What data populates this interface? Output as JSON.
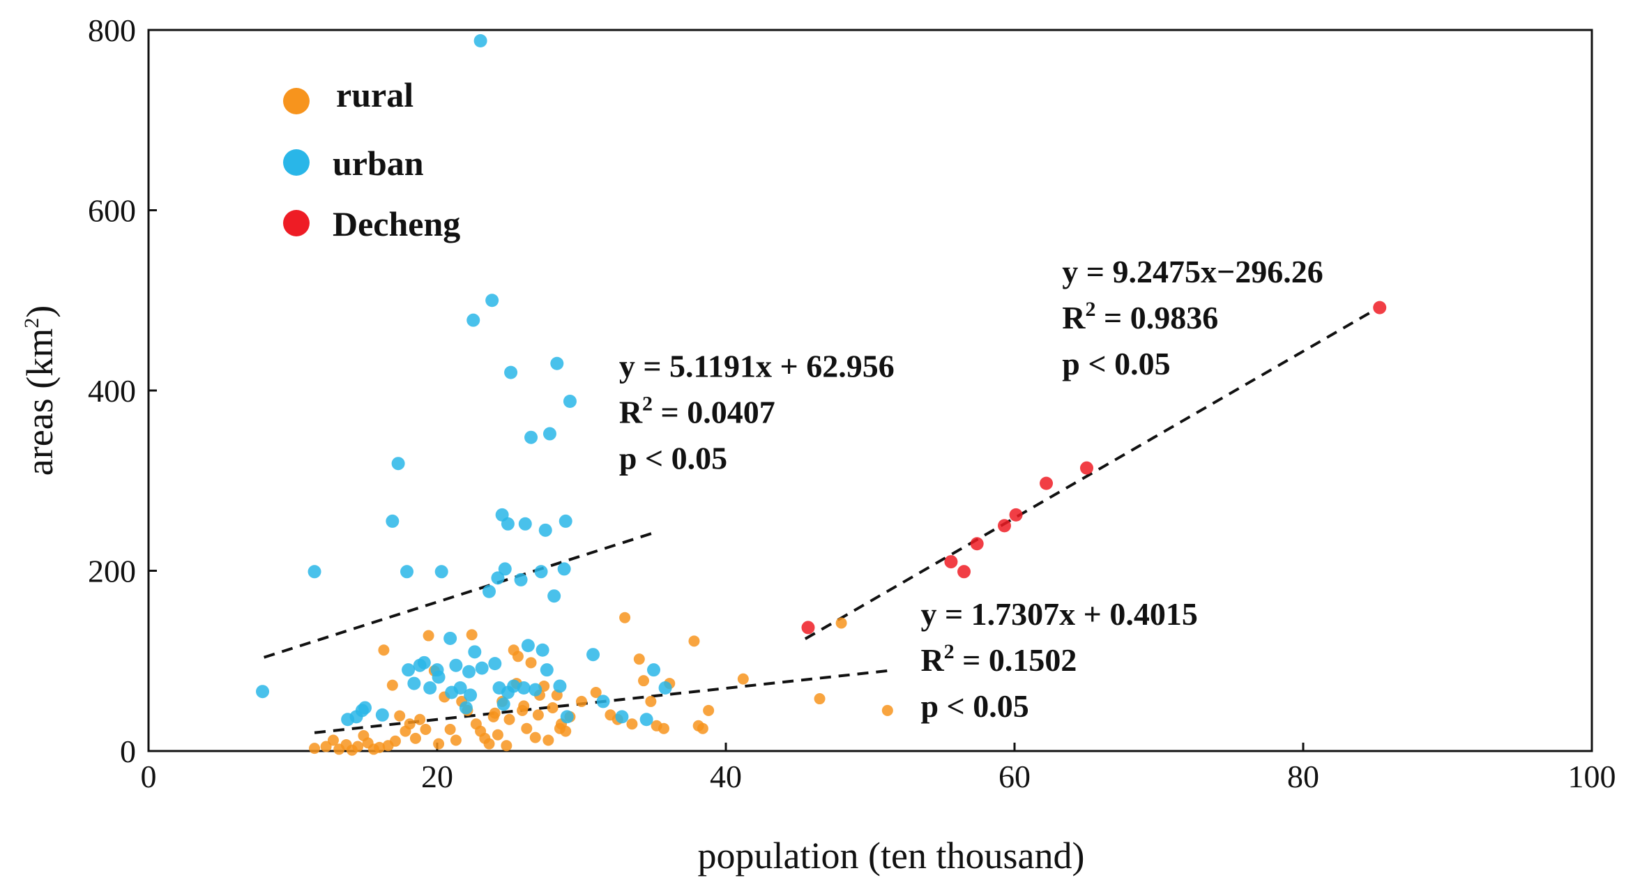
{
  "chart_data": {
    "type": "scatter",
    "xlabel": "population (ten thousand)",
    "ylabel_main": "areas (km",
    "ylabel_sup": "2",
    "ylabel_end": ")",
    "xlim": [
      0,
      100
    ],
    "ylim": [
      0,
      800
    ],
    "xticks": [
      "0",
      "20",
      "40",
      "60",
      "80",
      "100"
    ],
    "yticks": [
      "0",
      "200",
      "400",
      "600",
      "800"
    ],
    "legend_position": "top-left",
    "series": [
      {
        "name": "rural",
        "color": "#F7941D",
        "points": [
          [
            11.5,
            3
          ],
          [
            12.3,
            5
          ],
          [
            12.8,
            12
          ],
          [
            13.2,
            2
          ],
          [
            13.7,
            7
          ],
          [
            14.1,
            1
          ],
          [
            14.5,
            5
          ],
          [
            14.9,
            17
          ],
          [
            15.2,
            9
          ],
          [
            15.6,
            2
          ],
          [
            16.0,
            4
          ],
          [
            16.3,
            112
          ],
          [
            16.6,
            6
          ],
          [
            16.9,
            73
          ],
          [
            17.1,
            11
          ],
          [
            17.4,
            39
          ],
          [
            17.8,
            22
          ],
          [
            18.1,
            30
          ],
          [
            18.5,
            14
          ],
          [
            18.8,
            35
          ],
          [
            19.2,
            24
          ],
          [
            19.4,
            128
          ],
          [
            19.8,
            89
          ],
          [
            20.1,
            8
          ],
          [
            20.5,
            60
          ],
          [
            20.9,
            24
          ],
          [
            21.3,
            12
          ],
          [
            21.7,
            55
          ],
          [
            22.1,
            45
          ],
          [
            22.4,
            129
          ],
          [
            22.7,
            30
          ],
          [
            23.0,
            22
          ],
          [
            23.3,
            14
          ],
          [
            23.6,
            8
          ],
          [
            23.9,
            38
          ],
          [
            24.2,
            18
          ],
          [
            24.5,
            55
          ],
          [
            24.8,
            6
          ],
          [
            25.0,
            35
          ],
          [
            25.3,
            112
          ],
          [
            25.6,
            105
          ],
          [
            25.9,
            45
          ],
          [
            26.2,
            25
          ],
          [
            26.5,
            98
          ],
          [
            26.8,
            15
          ],
          [
            27.1,
            62
          ],
          [
            27.4,
            72
          ],
          [
            27.7,
            12
          ],
          [
            28.0,
            48
          ],
          [
            28.3,
            62
          ],
          [
            28.6,
            30
          ],
          [
            28.9,
            22
          ],
          [
            29.2,
            38
          ],
          [
            30.0,
            55
          ],
          [
            31.0,
            65
          ],
          [
            32.0,
            40
          ],
          [
            32.5,
            35
          ],
          [
            33.0,
            148
          ],
          [
            33.5,
            30
          ],
          [
            34.0,
            102
          ],
          [
            34.3,
            78
          ],
          [
            34.8,
            55
          ],
          [
            35.2,
            28
          ],
          [
            35.7,
            25
          ],
          [
            36.1,
            75
          ],
          [
            37.8,
            122
          ],
          [
            38.1,
            28
          ],
          [
            38.4,
            25
          ],
          [
            38.8,
            45
          ],
          [
            41.2,
            80
          ],
          [
            46.5,
            58
          ],
          [
            48.0,
            142
          ],
          [
            51.2,
            45
          ],
          [
            24.0,
            42
          ],
          [
            25.5,
            75
          ],
          [
            26.0,
            50
          ],
          [
            27.0,
            40
          ],
          [
            28.5,
            25
          ]
        ]
      },
      {
        "name": "urban",
        "color": "#29B6E8",
        "points": [
          [
            7.9,
            66
          ],
          [
            11.5,
            199
          ],
          [
            13.8,
            35
          ],
          [
            14.4,
            38
          ],
          [
            14.8,
            45
          ],
          [
            15.0,
            48
          ],
          [
            16.2,
            40
          ],
          [
            16.9,
            255
          ],
          [
            17.3,
            319
          ],
          [
            17.9,
            199
          ],
          [
            18.0,
            90
          ],
          [
            18.4,
            75
          ],
          [
            18.8,
            95
          ],
          [
            19.1,
            98
          ],
          [
            19.5,
            70
          ],
          [
            20.0,
            90
          ],
          [
            20.1,
            82
          ],
          [
            20.3,
            199
          ],
          [
            20.9,
            125
          ],
          [
            21.0,
            65
          ],
          [
            21.3,
            95
          ],
          [
            21.6,
            70
          ],
          [
            22.0,
            48
          ],
          [
            22.2,
            88
          ],
          [
            22.3,
            62
          ],
          [
            22.5,
            478
          ],
          [
            22.6,
            110
          ],
          [
            23.0,
            788
          ],
          [
            23.1,
            92
          ],
          [
            23.6,
            177
          ],
          [
            23.8,
            500
          ],
          [
            24.0,
            97
          ],
          [
            24.3,
            70
          ],
          [
            24.6,
            52
          ],
          [
            24.9,
            65
          ],
          [
            25.1,
            420
          ],
          [
            25.3,
            72
          ],
          [
            25.8,
            190
          ],
          [
            26.0,
            70
          ],
          [
            26.1,
            252
          ],
          [
            26.3,
            117
          ],
          [
            26.5,
            348
          ],
          [
            26.8,
            68
          ],
          [
            27.2,
            199
          ],
          [
            27.3,
            112
          ],
          [
            27.5,
            245
          ],
          [
            27.6,
            90
          ],
          [
            27.8,
            352
          ],
          [
            28.1,
            172
          ],
          [
            28.3,
            430
          ],
          [
            28.5,
            72
          ],
          [
            28.8,
            202
          ],
          [
            28.9,
            255
          ],
          [
            29.0,
            38
          ],
          [
            29.2,
            388
          ],
          [
            24.5,
            262
          ],
          [
            24.7,
            202
          ],
          [
            24.9,
            252
          ],
          [
            30.8,
            107
          ],
          [
            31.5,
            55
          ],
          [
            32.8,
            38
          ],
          [
            34.5,
            35
          ],
          [
            35.0,
            90
          ],
          [
            35.8,
            70
          ],
          [
            24.2,
            192
          ]
        ]
      },
      {
        "name": "Decheng",
        "color": "#EE1C25",
        "points": [
          [
            45.7,
            137
          ],
          [
            55.6,
            210
          ],
          [
            56.5,
            199
          ],
          [
            57.4,
            230
          ],
          [
            59.3,
            250
          ],
          [
            60.1,
            262
          ],
          [
            62.2,
            297
          ],
          [
            65.0,
            314
          ],
          [
            85.3,
            492
          ]
        ]
      }
    ],
    "trendlines": [
      {
        "name": "urban-fit",
        "x_range": [
          8,
          35
        ],
        "equation": "y = 5.1191x + 62.956",
        "r2_label": "R",
        "r2_sup": "2",
        "r2_value": " = 0.0407",
        "p_label": "p < 0.05",
        "label_anchor": [
          32.6,
          415
        ]
      },
      {
        "name": "rural-fit",
        "x_range": [
          11.5,
          51.5
        ],
        "equation": "y = 1.7307x + 0.4015",
        "r2_label": "R",
        "r2_sup": "2",
        "r2_value": " = 0.1502",
        "p_label": "p < 0.05",
        "label_anchor": [
          53.5,
          140
        ]
      },
      {
        "name": "decheng-fit",
        "x_range": [
          45.5,
          85
        ],
        "equation": "y = 9.2475x−296.26",
        "r2_label": "R",
        "r2_sup": "2",
        "r2_value": " = 0.9836",
        "p_label": "p < 0.05",
        "label_anchor": [
          63.3,
          520
        ]
      }
    ]
  }
}
